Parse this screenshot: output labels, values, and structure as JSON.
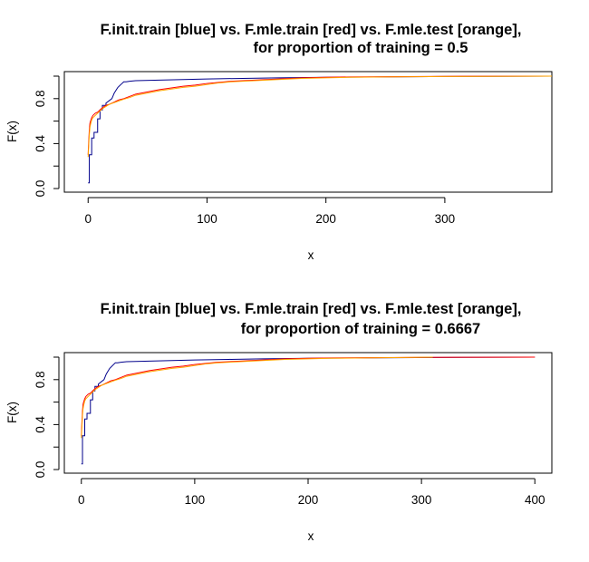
{
  "chart_data": [
    {
      "type": "line",
      "title_line1": "F.init.train [blue] vs. F.mle.train [red] vs. F.mle.test [orange],",
      "title_line2": "for proportion of training =  0.5",
      "xlabel": "x",
      "ylabel": "F(x)",
      "xlim": [
        -20,
        390
      ],
      "ylim": [
        0,
        1
      ],
      "x_ticks": [
        0,
        100,
        200,
        300
      ],
      "x_tick_labels": [
        "0",
        "100",
        "200",
        "300"
      ],
      "y_ticks": [
        0.0,
        0.2,
        0.4,
        0.6,
        0.8,
        1.0
      ],
      "y_tick_labels": [
        "0.0",
        "",
        "0.4",
        "",
        "0.8",
        ""
      ],
      "grid": false,
      "series": [
        {
          "color": "#00008b",
          "x": [
            0,
            1,
            1,
            3,
            3,
            5,
            5,
            8,
            8,
            10,
            10,
            12,
            12,
            15,
            15,
            20,
            22,
            25,
            28,
            30,
            32,
            35,
            40,
            60,
            80,
            100,
            130,
            160,
            200,
            250,
            300,
            390
          ],
          "y": [
            0.05,
            0.05,
            0.3,
            0.3,
            0.45,
            0.45,
            0.5,
            0.5,
            0.62,
            0.62,
            0.7,
            0.7,
            0.74,
            0.74,
            0.76,
            0.8,
            0.85,
            0.9,
            0.93,
            0.95,
            0.95,
            0.955,
            0.96,
            0.965,
            0.97,
            0.975,
            0.98,
            0.985,
            0.99,
            0.993,
            0.997,
            1.0
          ]
        },
        {
          "color": "#ff0000",
          "x": [
            0,
            0.5,
            1,
            1.5,
            2,
            3,
            4,
            6,
            8,
            10,
            12,
            15,
            18,
            22,
            26,
            30,
            35,
            40,
            50,
            60,
            70,
            80,
            90,
            100,
            110,
            120,
            130,
            140,
            150,
            160,
            170,
            180,
            200,
            220,
            250,
            300,
            320,
            390
          ],
          "y": [
            0.3,
            0.42,
            0.52,
            0.58,
            0.6,
            0.63,
            0.65,
            0.67,
            0.68,
            0.7,
            0.72,
            0.74,
            0.75,
            0.77,
            0.79,
            0.8,
            0.82,
            0.84,
            0.86,
            0.88,
            0.895,
            0.91,
            0.92,
            0.935,
            0.945,
            0.955,
            0.96,
            0.965,
            0.97,
            0.975,
            0.98,
            0.985,
            0.99,
            0.993,
            0.995,
            0.998,
            0.999,
            1.0
          ]
        },
        {
          "color": "#ffa500",
          "x": [
            0,
            0.5,
            1,
            1.5,
            2,
            3,
            4,
            6,
            8,
            10,
            12,
            15,
            18,
            22,
            26,
            30,
            35,
            40,
            50,
            60,
            70,
            80,
            90,
            100,
            110,
            120,
            130,
            140,
            150,
            160,
            170,
            180,
            200,
            220,
            250,
            300,
            390
          ],
          "y": [
            0.28,
            0.38,
            0.48,
            0.54,
            0.57,
            0.61,
            0.63,
            0.65,
            0.67,
            0.69,
            0.71,
            0.73,
            0.75,
            0.765,
            0.78,
            0.795,
            0.81,
            0.83,
            0.85,
            0.87,
            0.885,
            0.9,
            0.91,
            0.925,
            0.94,
            0.95,
            0.955,
            0.96,
            0.965,
            0.97,
            0.975,
            0.98,
            0.985,
            0.99,
            0.993,
            0.997,
            1.0
          ]
        }
      ]
    },
    {
      "type": "line",
      "title_line1": "F.init.train [blue] vs. F.mle.train [red] vs. F.mle.test [orange],",
      "title_line2": "for proportion of training =  0.6667",
      "xlabel": "x",
      "ylabel": "F(x)",
      "xlim": [
        -15,
        415
      ],
      "ylim": [
        0,
        1
      ],
      "x_ticks": [
        0,
        100,
        200,
        300,
        400
      ],
      "x_tick_labels": [
        "0",
        "100",
        "200",
        "300",
        "400"
      ],
      "y_ticks": [
        0.0,
        0.2,
        0.4,
        0.6,
        0.8,
        1.0
      ],
      "y_tick_labels": [
        "0.0",
        "",
        "0.4",
        "",
        "0.8",
        ""
      ],
      "grid": false,
      "series": [
        {
          "color": "#00008b",
          "x": [
            0,
            1,
            1,
            3,
            3,
            5,
            5,
            8,
            8,
            10,
            10,
            12,
            12,
            15,
            15,
            20,
            22,
            25,
            28,
            30,
            32,
            35,
            40,
            60,
            80,
            100,
            130,
            160,
            200,
            250,
            310,
            400
          ],
          "y": [
            0.05,
            0.05,
            0.3,
            0.3,
            0.45,
            0.45,
            0.5,
            0.5,
            0.62,
            0.62,
            0.7,
            0.7,
            0.74,
            0.74,
            0.76,
            0.8,
            0.85,
            0.9,
            0.93,
            0.95,
            0.95,
            0.955,
            0.96,
            0.965,
            0.97,
            0.975,
            0.98,
            0.985,
            0.99,
            0.993,
            0.997,
            1.0
          ]
        },
        {
          "color": "#ff0000",
          "x": [
            0,
            0.5,
            1,
            1.5,
            2,
            3,
            4,
            6,
            8,
            10,
            12,
            15,
            18,
            22,
            26,
            30,
            35,
            40,
            50,
            60,
            70,
            80,
            90,
            100,
            110,
            120,
            130,
            140,
            150,
            160,
            170,
            180,
            200,
            220,
            250,
            300,
            350,
            400
          ],
          "y": [
            0.3,
            0.42,
            0.52,
            0.58,
            0.6,
            0.63,
            0.65,
            0.67,
            0.68,
            0.7,
            0.72,
            0.74,
            0.75,
            0.77,
            0.79,
            0.8,
            0.82,
            0.84,
            0.86,
            0.88,
            0.895,
            0.91,
            0.92,
            0.935,
            0.945,
            0.955,
            0.96,
            0.965,
            0.97,
            0.975,
            0.98,
            0.985,
            0.99,
            0.993,
            0.995,
            0.998,
            0.999,
            1.0
          ]
        },
        {
          "color": "#ffa500",
          "x": [
            0,
            0.5,
            1,
            1.5,
            2,
            3,
            4,
            6,
            8,
            10,
            12,
            15,
            18,
            22,
            26,
            30,
            35,
            40,
            50,
            60,
            70,
            80,
            90,
            100,
            110,
            120,
            130,
            140,
            150,
            160,
            170,
            180,
            200,
            220,
            250,
            310
          ],
          "y": [
            0.28,
            0.38,
            0.48,
            0.54,
            0.57,
            0.61,
            0.63,
            0.65,
            0.67,
            0.69,
            0.71,
            0.73,
            0.75,
            0.765,
            0.78,
            0.795,
            0.81,
            0.83,
            0.85,
            0.87,
            0.885,
            0.9,
            0.91,
            0.925,
            0.94,
            0.95,
            0.955,
            0.96,
            0.965,
            0.97,
            0.975,
            0.98,
            0.985,
            0.99,
            0.993,
            1.0
          ]
        }
      ]
    }
  ]
}
